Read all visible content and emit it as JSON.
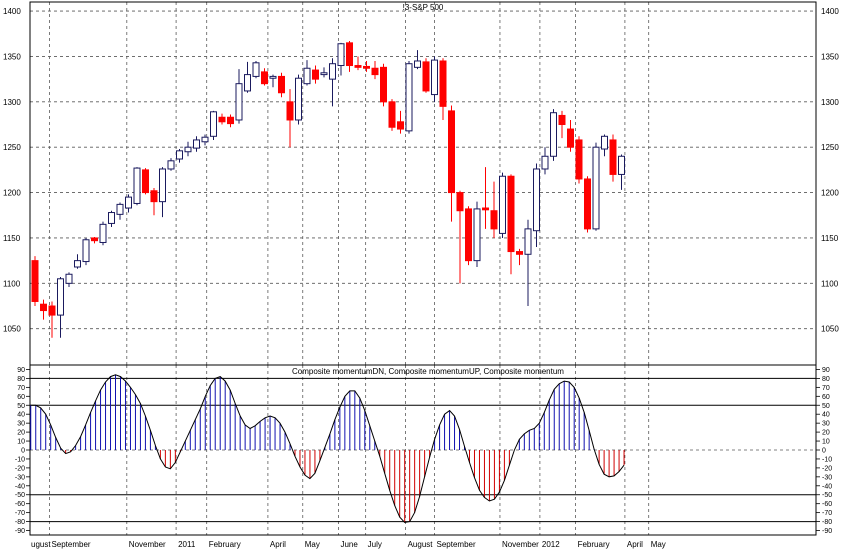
{
  "colors": {
    "bull_fill": "#ffffff",
    "bull_edge": "#1a1a5e",
    "bear": "#ff0000",
    "pos_hist": "#1010b0",
    "neg_hist": "#d00000",
    "line": "#000000",
    "grid": "#5a5a5a"
  },
  "chart_data": [
    {
      "type": "candlestick",
      "title": "!3-S&P 500",
      "xlabel": "",
      "ylabel": "",
      "ylim": [
        1010,
        1410
      ],
      "y_ticks": [
        1050,
        1100,
        1150,
        1200,
        1250,
        1300,
        1350,
        1400
      ],
      "y_tick_labels": [
        "1050",
        "1100",
        "1150",
        "1200",
        "1250",
        "1300",
        "1350",
        "1400"
      ],
      "grid": true,
      "candles": [
        {
          "o": 1125,
          "h": 1130,
          "l": 1075,
          "c": 1080
        },
        {
          "o": 1077,
          "h": 1082,
          "l": 1060,
          "c": 1070
        },
        {
          "o": 1075,
          "h": 1080,
          "l": 1040,
          "c": 1065
        },
        {
          "o": 1065,
          "h": 1107,
          "l": 1040,
          "c": 1105
        },
        {
          "o": 1100,
          "h": 1112,
          "l": 1096,
          "c": 1110
        },
        {
          "o": 1118,
          "h": 1132,
          "l": 1116,
          "c": 1125
        },
        {
          "o": 1124,
          "h": 1150,
          "l": 1120,
          "c": 1148
        },
        {
          "o": 1150,
          "h": 1151,
          "l": 1144,
          "c": 1147
        },
        {
          "o": 1145,
          "h": 1168,
          "l": 1142,
          "c": 1165
        },
        {
          "o": 1166,
          "h": 1180,
          "l": 1162,
          "c": 1178
        },
        {
          "o": 1176,
          "h": 1189,
          "l": 1170,
          "c": 1187
        },
        {
          "o": 1183,
          "h": 1198,
          "l": 1178,
          "c": 1195
        },
        {
          "o": 1188,
          "h": 1228,
          "l": 1186,
          "c": 1227
        },
        {
          "o": 1225,
          "h": 1227,
          "l": 1198,
          "c": 1200
        },
        {
          "o": 1202,
          "h": 1205,
          "l": 1175,
          "c": 1190
        },
        {
          "o": 1190,
          "h": 1228,
          "l": 1173,
          "c": 1226
        },
        {
          "o": 1226,
          "h": 1238,
          "l": 1224,
          "c": 1235
        },
        {
          "o": 1237,
          "h": 1248,
          "l": 1233,
          "c": 1246
        },
        {
          "o": 1245,
          "h": 1256,
          "l": 1240,
          "c": 1250
        },
        {
          "o": 1249,
          "h": 1262,
          "l": 1245,
          "c": 1258
        },
        {
          "o": 1256,
          "h": 1264,
          "l": 1252,
          "c": 1261
        },
        {
          "o": 1262,
          "h": 1290,
          "l": 1258,
          "c": 1289
        },
        {
          "o": 1283,
          "h": 1287,
          "l": 1275,
          "c": 1278
        },
        {
          "o": 1283,
          "h": 1286,
          "l": 1272,
          "c": 1276
        },
        {
          "o": 1280,
          "h": 1336,
          "l": 1276,
          "c": 1320
        },
        {
          "o": 1312,
          "h": 1344,
          "l": 1310,
          "c": 1330
        },
        {
          "o": 1328,
          "h": 1345,
          "l": 1326,
          "c": 1343
        },
        {
          "o": 1333,
          "h": 1337,
          "l": 1318,
          "c": 1320
        },
        {
          "o": 1326,
          "h": 1330,
          "l": 1316,
          "c": 1328
        },
        {
          "o": 1328,
          "h": 1332,
          "l": 1305,
          "c": 1310
        },
        {
          "o": 1300,
          "h": 1314,
          "l": 1250,
          "c": 1280
        },
        {
          "o": 1280,
          "h": 1330,
          "l": 1275,
          "c": 1326
        },
        {
          "o": 1320,
          "h": 1346,
          "l": 1318,
          "c": 1337
        },
        {
          "o": 1335,
          "h": 1340,
          "l": 1320,
          "c": 1325
        },
        {
          "o": 1330,
          "h": 1338,
          "l": 1327,
          "c": 1332
        },
        {
          "o": 1325,
          "h": 1348,
          "l": 1295,
          "c": 1342
        },
        {
          "o": 1340,
          "h": 1365,
          "l": 1329,
          "c": 1364
        },
        {
          "o": 1365,
          "h": 1367,
          "l": 1333,
          "c": 1340
        },
        {
          "o": 1340,
          "h": 1350,
          "l": 1335,
          "c": 1338
        },
        {
          "o": 1339,
          "h": 1345,
          "l": 1333,
          "c": 1337
        },
        {
          "o": 1337,
          "h": 1345,
          "l": 1325,
          "c": 1330
        },
        {
          "o": 1338,
          "h": 1342,
          "l": 1295,
          "c": 1300
        },
        {
          "o": 1300,
          "h": 1303,
          "l": 1268,
          "c": 1272
        },
        {
          "o": 1278,
          "h": 1290,
          "l": 1265,
          "c": 1270
        },
        {
          "o": 1268,
          "h": 1345,
          "l": 1265,
          "c": 1342
        },
        {
          "o": 1338,
          "h": 1357,
          "l": 1336,
          "c": 1345
        },
        {
          "o": 1344,
          "h": 1348,
          "l": 1310,
          "c": 1312
        },
        {
          "o": 1308,
          "h": 1350,
          "l": 1300,
          "c": 1346
        },
        {
          "o": 1345,
          "h": 1348,
          "l": 1280,
          "c": 1295
        },
        {
          "o": 1290,
          "h": 1296,
          "l": 1168,
          "c": 1200
        },
        {
          "o": 1200,
          "h": 1202,
          "l": 1100,
          "c": 1180
        },
        {
          "o": 1182,
          "h": 1185,
          "l": 1120,
          "c": 1125
        },
        {
          "o": 1125,
          "h": 1190,
          "l": 1118,
          "c": 1182
        },
        {
          "o": 1183,
          "h": 1228,
          "l": 1160,
          "c": 1181
        },
        {
          "o": 1180,
          "h": 1212,
          "l": 1150,
          "c": 1160
        },
        {
          "o": 1155,
          "h": 1222,
          "l": 1150,
          "c": 1218
        },
        {
          "o": 1218,
          "h": 1220,
          "l": 1110,
          "c": 1135
        },
        {
          "o": 1135,
          "h": 1138,
          "l": 1120,
          "c": 1132
        },
        {
          "o": 1132,
          "h": 1170,
          "l": 1075,
          "c": 1160
        },
        {
          "o": 1158,
          "h": 1232,
          "l": 1140,
          "c": 1226
        },
        {
          "o": 1226,
          "h": 1250,
          "l": 1220,
          "c": 1240
        },
        {
          "o": 1240,
          "h": 1292,
          "l": 1235,
          "c": 1288
        },
        {
          "o": 1285,
          "h": 1290,
          "l": 1260,
          "c": 1275
        },
        {
          "o": 1270,
          "h": 1280,
          "l": 1245,
          "c": 1250
        },
        {
          "o": 1258,
          "h": 1262,
          "l": 1210,
          "c": 1215
        },
        {
          "o": 1215,
          "h": 1218,
          "l": 1156,
          "c": 1160
        },
        {
          "o": 1160,
          "h": 1255,
          "l": 1158,
          "c": 1250
        },
        {
          "o": 1248,
          "h": 1264,
          "l": 1240,
          "c": 1262
        },
        {
          "o": 1258,
          "h": 1264,
          "l": 1212,
          "c": 1220
        },
        {
          "o": 1220,
          "h": 1242,
          "l": 1203,
          "c": 1240
        }
      ]
    },
    {
      "type": "line",
      "title": "Composite momentumDN, Composite momentumUP, Composite momentum",
      "xlabel": "",
      "ylabel": "",
      "ylim": [
        -95,
        95
      ],
      "y_ticks": [
        90,
        80,
        70,
        60,
        50,
        40,
        30,
        20,
        10,
        0,
        -10,
        -20,
        -30,
        -40,
        -50,
        -60,
        -70,
        -80,
        -90
      ],
      "y_tick_labels": [
        "90",
        "80",
        "70",
        "60",
        "50",
        "40",
        "30",
        "20",
        "10",
        "0",
        "-10",
        "-20",
        "-30",
        "-40",
        "-50",
        "-60",
        "-70",
        "-80",
        "-90"
      ],
      "reference_lines": [
        80,
        50,
        -50,
        -80
      ],
      "series": [
        {
          "name": "Composite momentumDN",
          "style": "histogram-negative"
        },
        {
          "name": "Composite momentumUP",
          "style": "histogram-positive"
        },
        {
          "name": "Composite momentum",
          "style": "line"
        }
      ],
      "values": [
        50,
        50,
        47,
        40,
        28,
        14,
        2,
        -4,
        -2,
        5,
        15,
        28,
        42,
        55,
        67,
        76,
        82,
        84,
        82,
        77,
        70,
        62,
        52,
        38,
        22,
        5,
        -10,
        -19,
        -21,
        -14,
        -2,
        10,
        22,
        34,
        46,
        60,
        72,
        80,
        82,
        77,
        67,
        52,
        38,
        28,
        24,
        27,
        32,
        36,
        38,
        36,
        30,
        20,
        7,
        -7,
        -19,
        -28,
        -32,
        -26,
        -12,
        3,
        18,
        34,
        48,
        60,
        66,
        66,
        58,
        44,
        27,
        10,
        -7,
        -26,
        -45,
        -62,
        -75,
        -81,
        -80,
        -70,
        -52,
        -30,
        -8,
        12,
        28,
        40,
        44,
        38,
        23,
        4,
        -14,
        -31,
        -45,
        -53,
        -57,
        -55,
        -47,
        -34,
        -17,
        0,
        12,
        18,
        22,
        24,
        30,
        42,
        56,
        68,
        74,
        77,
        76,
        70,
        58,
        42,
        22,
        1,
        -16,
        -27,
        -30,
        -29,
        -24,
        -17
      ],
      "x_labels": [
        "ugust",
        "September",
        "November",
        "2011",
        "February",
        "April",
        "May",
        "June",
        "July",
        "August",
        "September",
        "November",
        "2012",
        "February",
        "April",
        "May"
      ],
      "x_label_candle_index": [
        -3.2,
        1.7,
        10.8,
        16.6,
        20.2,
        27.4,
        31.5,
        35.7,
        38.9,
        43.6,
        47.0,
        54.7,
        59.4,
        63.6,
        69.4,
        72.2
      ]
    }
  ]
}
